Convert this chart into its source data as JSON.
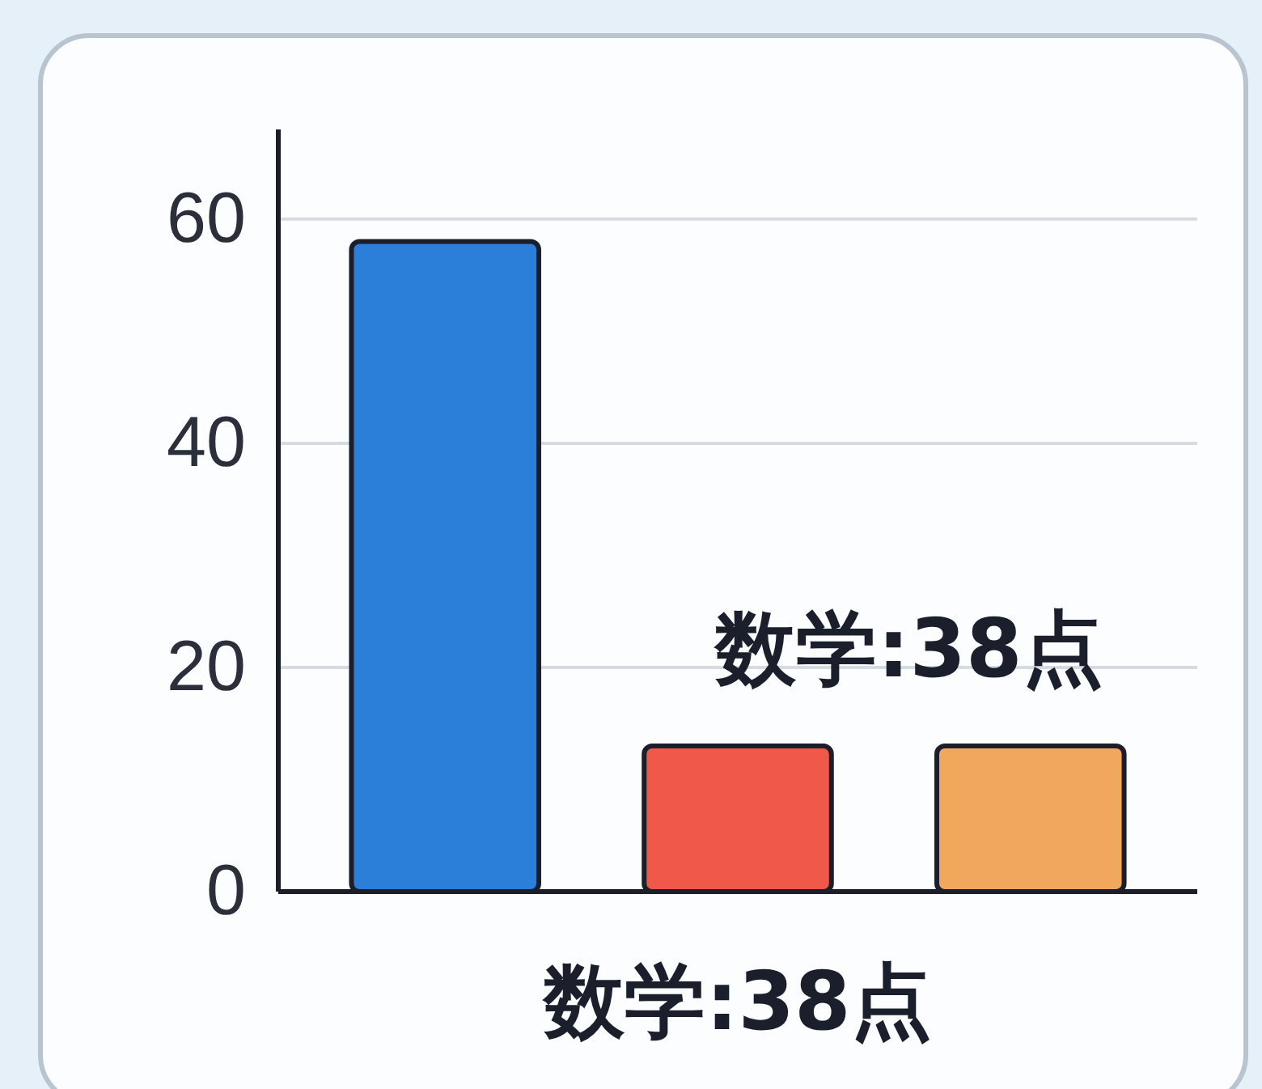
{
  "chart_data": {
    "type": "bar",
    "categories": [
      null,
      null,
      null
    ],
    "values": [
      58,
      13,
      13
    ],
    "colors": [
      "#2b7fd8",
      "#f0584a",
      "#f2a85c"
    ],
    "ylim": [
      0,
      68
    ],
    "yticks": [
      0,
      20,
      40,
      60
    ],
    "grid": "y",
    "annotations": [
      "数学:38点",
      "数学:38点"
    ]
  }
}
